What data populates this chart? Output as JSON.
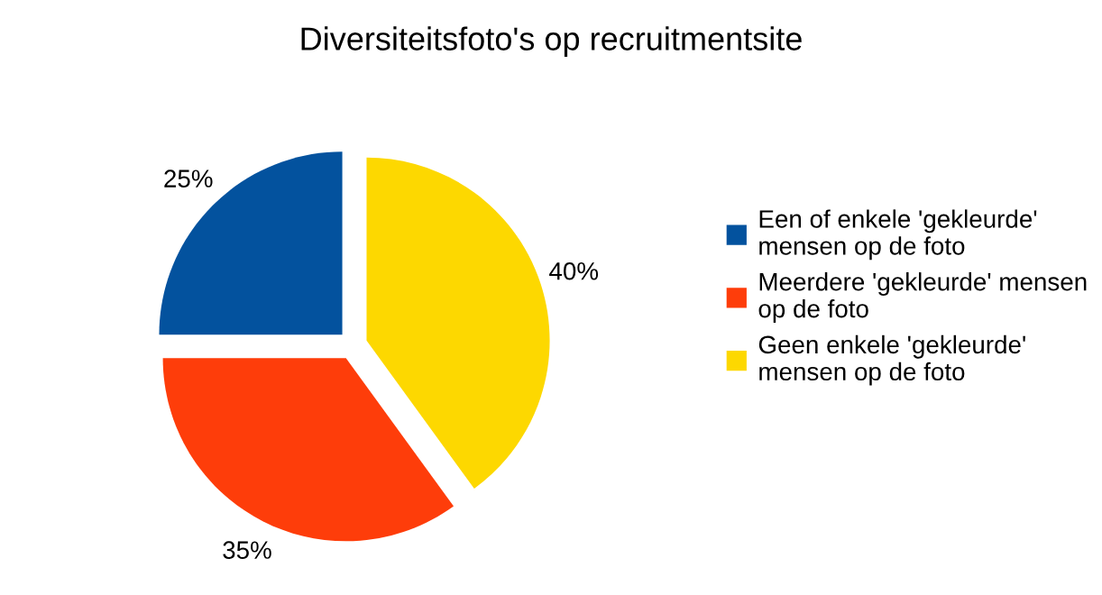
{
  "chart_data": {
    "type": "pie",
    "title": "Diversiteitsfoto's op recruitmentsite",
    "categories": [
      "Een of enkele 'gekleurde' mensen op de foto",
      "Meerdere 'gekleurde' mensen op de foto",
      "Geen enkele 'gekleurde' mensen op de foto"
    ],
    "values": [
      25,
      35,
      40
    ],
    "colors": [
      "#03529e",
      "#fe3d0a",
      "#fdd800"
    ],
    "value_labels": [
      "25%",
      "35%",
      "40%"
    ],
    "legend": "right"
  }
}
